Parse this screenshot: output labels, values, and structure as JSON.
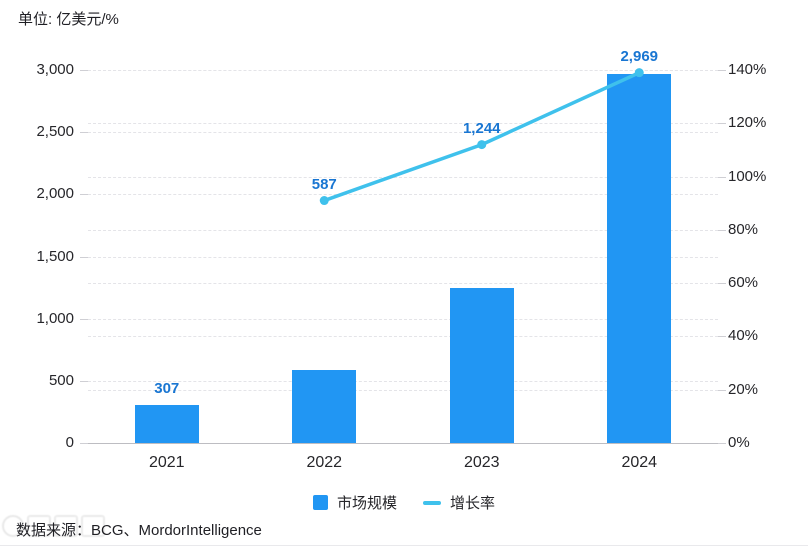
{
  "unit_label": "单位: 亿美元/%",
  "source_text": "数据来源：BCG、MordorIntelligence",
  "colors": {
    "bar": "#2196f3",
    "line": "#3fc1ec",
    "value_label": "#1976d2",
    "grid": "#e4e4e8",
    "axis": "#bdbdc2",
    "text": "#26262a"
  },
  "legend": {
    "items": [
      {
        "label": "市场规模",
        "swatch": "bar-square"
      },
      {
        "label": "增长率",
        "swatch": "line-dash"
      }
    ]
  },
  "chart_data": {
    "type": "bar",
    "title": "",
    "categories": [
      "2021",
      "2022",
      "2023",
      "2024"
    ],
    "series": [
      {
        "name": "市场规模",
        "type": "bar",
        "axis": "left",
        "values": [
          307,
          587,
          1244,
          2969
        ],
        "labels": [
          "307",
          "587",
          "1,244",
          "2,969"
        ]
      },
      {
        "name": "增长率",
        "type": "line",
        "axis": "right",
        "values": [
          null,
          91,
          112,
          139
        ]
      }
    ],
    "left_axis": {
      "label": "亿美元",
      "tick_labels": [
        "0",
        "500",
        "1,000",
        "1,500",
        "2,000",
        "2,500",
        "3,000"
      ],
      "tick_values": [
        0,
        500,
        1000,
        1500,
        2000,
        2500,
        3000
      ],
      "max": 3000
    },
    "right_axis": {
      "label": "%",
      "tick_labels": [
        "0%",
        "20%",
        "40%",
        "60%",
        "80%",
        "100%",
        "120%",
        "140%"
      ],
      "tick_values": [
        0,
        20,
        40,
        60,
        80,
        100,
        120,
        140
      ],
      "max": 140
    },
    "grid": true,
    "legend_position": "bottom"
  }
}
